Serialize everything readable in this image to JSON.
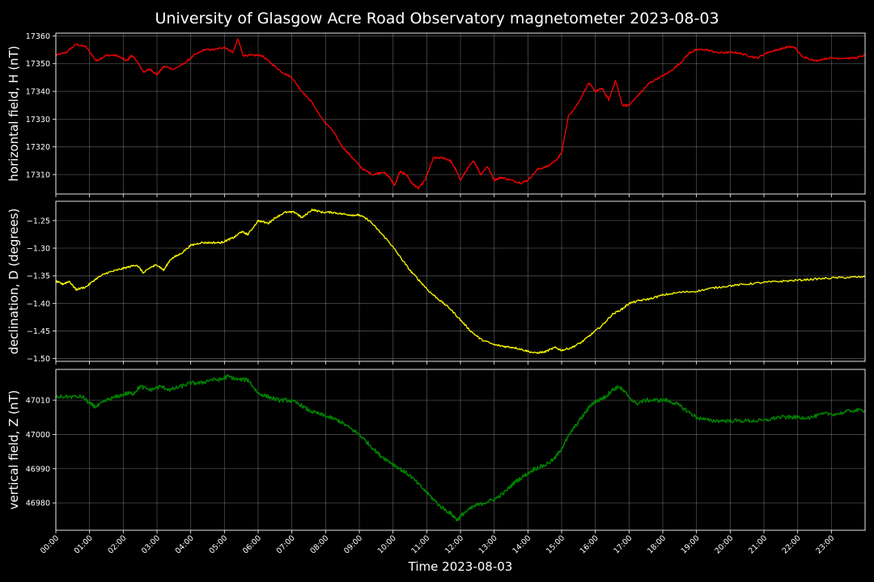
{
  "title": "University of Glasgow Acre Road Observatory magnetometer 2023-08-03",
  "chart_data": {
    "type": "line",
    "title": "University of Glasgow Acre Road Observatory magnetometer 2023-08-03",
    "xlabel": "Time 2023-08-03",
    "xticks": [
      "00:00",
      "01:00",
      "02:00",
      "03:00",
      "04:00",
      "05:00",
      "06:00",
      "07:00",
      "08:00",
      "09:00",
      "10:00",
      "11:00",
      "12:00",
      "13:00",
      "14:00",
      "15:00",
      "16:00",
      "17:00",
      "18:00",
      "19:00",
      "20:00",
      "21:00",
      "22:00",
      "23:00"
    ],
    "xlim_hours": [
      0,
      24
    ],
    "grid": true,
    "panels": [
      {
        "ylabel": "horizontal field, H (nT)",
        "ylim": [
          17303,
          17361
        ],
        "yticks": [
          "17310",
          "17320",
          "17330",
          "17340",
          "17350",
          "17360"
        ],
        "ytick_values": [
          17310,
          17320,
          17330,
          17340,
          17350,
          17360
        ],
        "series": [
          {
            "color": "#ff0000",
            "x": [
              0,
              0.3,
              0.6,
              0.9,
              1.2,
              1.5,
              1.8,
              2.1,
              2.25,
              2.4,
              2.6,
              2.8,
              3.0,
              3.2,
              3.5,
              3.8,
              4.1,
              4.4,
              4.7,
              5.0,
              5.25,
              5.4,
              5.55,
              5.8,
              6.1,
              6.4,
              6.7,
              7.0,
              7.3,
              7.6,
              7.9,
              8.2,
              8.5,
              8.8,
              9.1,
              9.4,
              9.7,
              9.9,
              10.05,
              10.2,
              10.4,
              10.55,
              10.75,
              10.95,
              11.2,
              11.5,
              11.7,
              11.85,
              12.0,
              12.2,
              12.4,
              12.6,
              12.8,
              13.0,
              13.2,
              13.5,
              13.8,
              14.0,
              14.3,
              14.6,
              14.9,
              15.0,
              15.2,
              15.5,
              15.8,
              16.0,
              16.2,
              16.4,
              16.6,
              16.8,
              17.0,
              17.3,
              17.6,
              17.9,
              18.2,
              18.5,
              18.8,
              19.0,
              19.3,
              19.6,
              19.9,
              20.2,
              20.5,
              20.8,
              21.1,
              21.4,
              21.7,
              21.9,
              22.1,
              22.5,
              22.9,
              23.3,
              23.7,
              24.0
            ],
            "y": [
              17353,
              17354,
              17357,
              17356,
              17351,
              17353,
              17353,
              17351,
              17353,
              17351,
              17347,
              17348,
              17346,
              17349,
              17348,
              17350,
              17353,
              17355,
              17355,
              17356,
              17354,
              17359,
              17353,
              17353,
              17353,
              17350,
              17347,
              17345,
              17340,
              17336,
              17330,
              17326,
              17320,
              17316,
              17312,
              17310,
              17311,
              17309,
              17306,
              17311,
              17310,
              17307,
              17305,
              17308,
              17316,
              17316,
              17315,
              17312,
              17308,
              17312,
              17315,
              17310,
              17313,
              17308,
              17309,
              17308,
              17307,
              17308,
              17312,
              17313,
              17316,
              17318,
              17331,
              17336,
              17343,
              17340,
              17341,
              17337,
              17344,
              17335,
              17335,
              17339,
              17343,
              17345,
              17347,
              17350,
              17354,
              17355,
              17355,
              17354,
              17354,
              17354,
              17353,
              17352,
              17354,
              17355,
              17356,
              17356,
              17353,
              17351,
              17352,
              17352,
              17352,
              17353
            ]
          }
        ]
      },
      {
        "ylabel": "declination, D (degrees)",
        "ylim": [
          -1.505,
          -1.215
        ],
        "yticks": [
          "−1.50",
          "−1.45",
          "−1.40",
          "−1.35",
          "−1.30",
          "−1.25"
        ],
        "ytick_values": [
          -1.5,
          -1.45,
          -1.4,
          -1.35,
          -1.3,
          -1.25
        ],
        "series": [
          {
            "color": "#ffff00",
            "x": [
              0,
              0.2,
              0.4,
              0.6,
              0.9,
              1.2,
              1.5,
              1.8,
              2.1,
              2.4,
              2.6,
              2.8,
              3.0,
              3.2,
              3.4,
              3.7,
              4.0,
              4.3,
              4.6,
              4.9,
              5.1,
              5.3,
              5.5,
              5.7,
              6.0,
              6.3,
              6.5,
              6.8,
              7.1,
              7.3,
              7.6,
              7.9,
              8.2,
              8.5,
              8.8,
              9.0,
              9.3,
              9.6,
              9.9,
              10.2,
              10.5,
              10.8,
              11.1,
              11.4,
              11.7,
              12.0,
              12.3,
              12.6,
              13.0,
              13.3,
              13.6,
              13.9,
              14.2,
              14.5,
              14.8,
              15.0,
              15.3,
              15.6,
              15.9,
              16.2,
              16.5,
              16.8,
              17.0,
              17.3,
              17.6,
              18.0,
              18.5,
              19.0,
              19.5,
              20.0,
              20.5,
              21.0,
              21.5,
              22.0,
              22.5,
              23.0,
              23.5,
              24.0
            ],
            "y": [
              -1.36,
              -1.365,
              -1.36,
              -1.375,
              -1.37,
              -1.355,
              -1.345,
              -1.34,
              -1.335,
              -1.33,
              -1.345,
              -1.335,
              -1.33,
              -1.34,
              -1.32,
              -1.31,
              -1.295,
              -1.29,
              -1.29,
              -1.29,
              -1.285,
              -1.28,
              -1.27,
              -1.275,
              -1.25,
              -1.255,
              -1.245,
              -1.235,
              -1.235,
              -1.245,
              -1.23,
              -1.235,
              -1.235,
              -1.238,
              -1.24,
              -1.24,
              -1.25,
              -1.27,
              -1.29,
              -1.315,
              -1.34,
              -1.36,
              -1.38,
              -1.395,
              -1.41,
              -1.43,
              -1.45,
              -1.465,
              -1.475,
              -1.478,
              -1.48,
              -1.485,
              -1.49,
              -1.488,
              -1.48,
              -1.485,
              -1.48,
              -1.47,
              -1.455,
              -1.44,
              -1.42,
              -1.41,
              -1.4,
              -1.395,
              -1.392,
              -1.385,
              -1.38,
              -1.378,
              -1.372,
              -1.368,
              -1.365,
              -1.362,
              -1.36,
              -1.358,
              -1.356,
              -1.354,
              -1.353,
              -1.352
            ]
          }
        ]
      },
      {
        "ylabel": "vertical field, Z (nT)",
        "ylim": [
          46972,
          47019
        ],
        "yticks": [
          "46980",
          "46990",
          "47000",
          "47010"
        ],
        "ytick_values": [
          46980,
          46990,
          47000,
          47010
        ],
        "series": [
          {
            "color": "#008000",
            "x": [
              0,
              0.4,
              0.8,
              1.0,
              1.2,
              1.5,
              1.8,
              2.1,
              2.3,
              2.5,
              2.8,
              3.1,
              3.4,
              3.7,
              4.0,
              4.3,
              4.6,
              4.9,
              5.1,
              5.4,
              5.7,
              6.0,
              6.3,
              6.6,
              6.9,
              7.2,
              7.5,
              7.8,
              8.1,
              8.4,
              8.7,
              9.0,
              9.3,
              9.6,
              9.9,
              10.2,
              10.5,
              10.8,
              11.1,
              11.4,
              11.7,
              11.9,
              12.1,
              12.4,
              12.7,
              13.0,
              13.3,
              13.6,
              13.9,
              14.2,
              14.5,
              14.8,
              15.0,
              15.3,
              15.6,
              15.9,
              16.1,
              16.3,
              16.5,
              16.7,
              16.9,
              17.2,
              17.5,
              17.8,
              18.1,
              18.4,
              18.7,
              19.0,
              19.4,
              19.8,
              20.2,
              20.6,
              21.0,
              21.4,
              21.8,
              22.0,
              22.4,
              22.8,
              23.2,
              23.6,
              24.0
            ],
            "y": [
              47011,
              47011,
              47011,
              47009,
              47008,
              47010,
              47011,
              47012,
              47012,
              47014,
              47013,
              47014,
              47013,
              47014,
              47015,
              47015,
              47016,
              47016,
              47017,
              47016,
              47016,
              47012,
              47011,
              47010,
              47010,
              47009,
              47007,
              47006,
              47005,
              47004,
              47002,
              47000,
              46997,
              46994,
              46992,
              46990,
              46988,
              46985,
              46982,
              46979,
              46977,
              46975,
              46977,
              46979,
              46980,
              46981,
              46983,
              46986,
              46988,
              46990,
              46991,
              46993,
              46996,
              47001,
              47005,
              47009,
              47010,
              47011,
              47013,
              47014,
              47012,
              47009,
              47010,
              47010,
              47010,
              47009,
              47007,
              47005,
              47004,
              47004,
              47004,
              47004,
              47004,
              47005,
              47005,
              47005,
              47005,
              47006,
              47006,
              47007,
              47007
            ]
          }
        ]
      }
    ]
  }
}
